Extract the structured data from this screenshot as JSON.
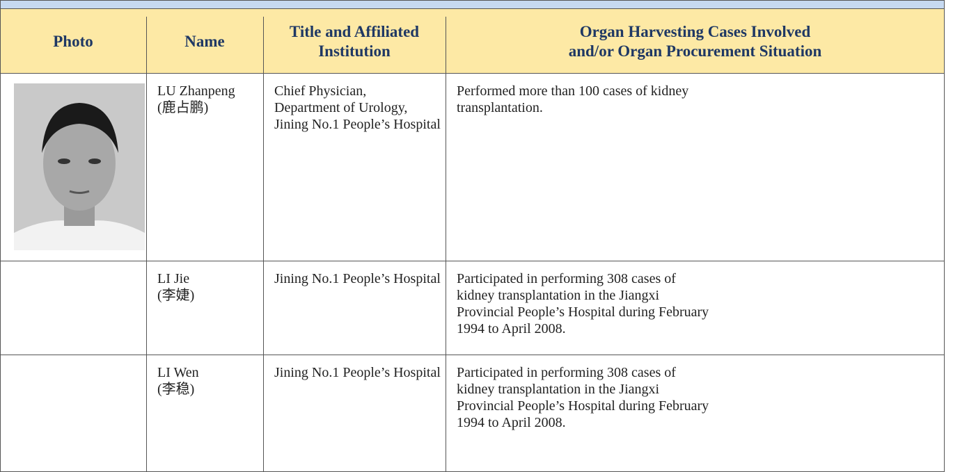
{
  "table": {
    "headers": [
      [
        "Photo"
      ],
      [
        "Name"
      ],
      [
        "Title and Affiliated",
        "Institution"
      ],
      [
        "Organ Harvesting Cases Involved",
        "and/or Organ Procurement Situation"
      ]
    ],
    "rows": [
      [
        [
          "LU Zhanpeng",
          "(鹿占鹏)"
        ],
        [
          "Chief Physician,",
          "Department of Urology,",
          "Jining No.1 People’s Hospital"
        ],
        [
          "Performed more than 100 cases of kidney",
          "transplantation."
        ]
      ],
      [
        [
          "LI Jie",
          "(李婕)"
        ],
        [
          "Jining No.1 People’s Hospital"
        ],
        [
          "Participated in performing 308 cases of",
          "kidney transplantation in the Jiangxi",
          "Provincial People’s Hospital during February",
          "1994 to April 2008."
        ]
      ],
      [
        [
          "LI Wen",
          "(李稳)"
        ],
        [
          "Jining No.1 People’s Hospital"
        ],
        [
          "Participated in performing 308 cases of",
          "kidney transplantation in the Jiangxi",
          "Provincial People’s Hospital during February",
          "1994 to April 2008."
        ]
      ]
    ]
  }
}
